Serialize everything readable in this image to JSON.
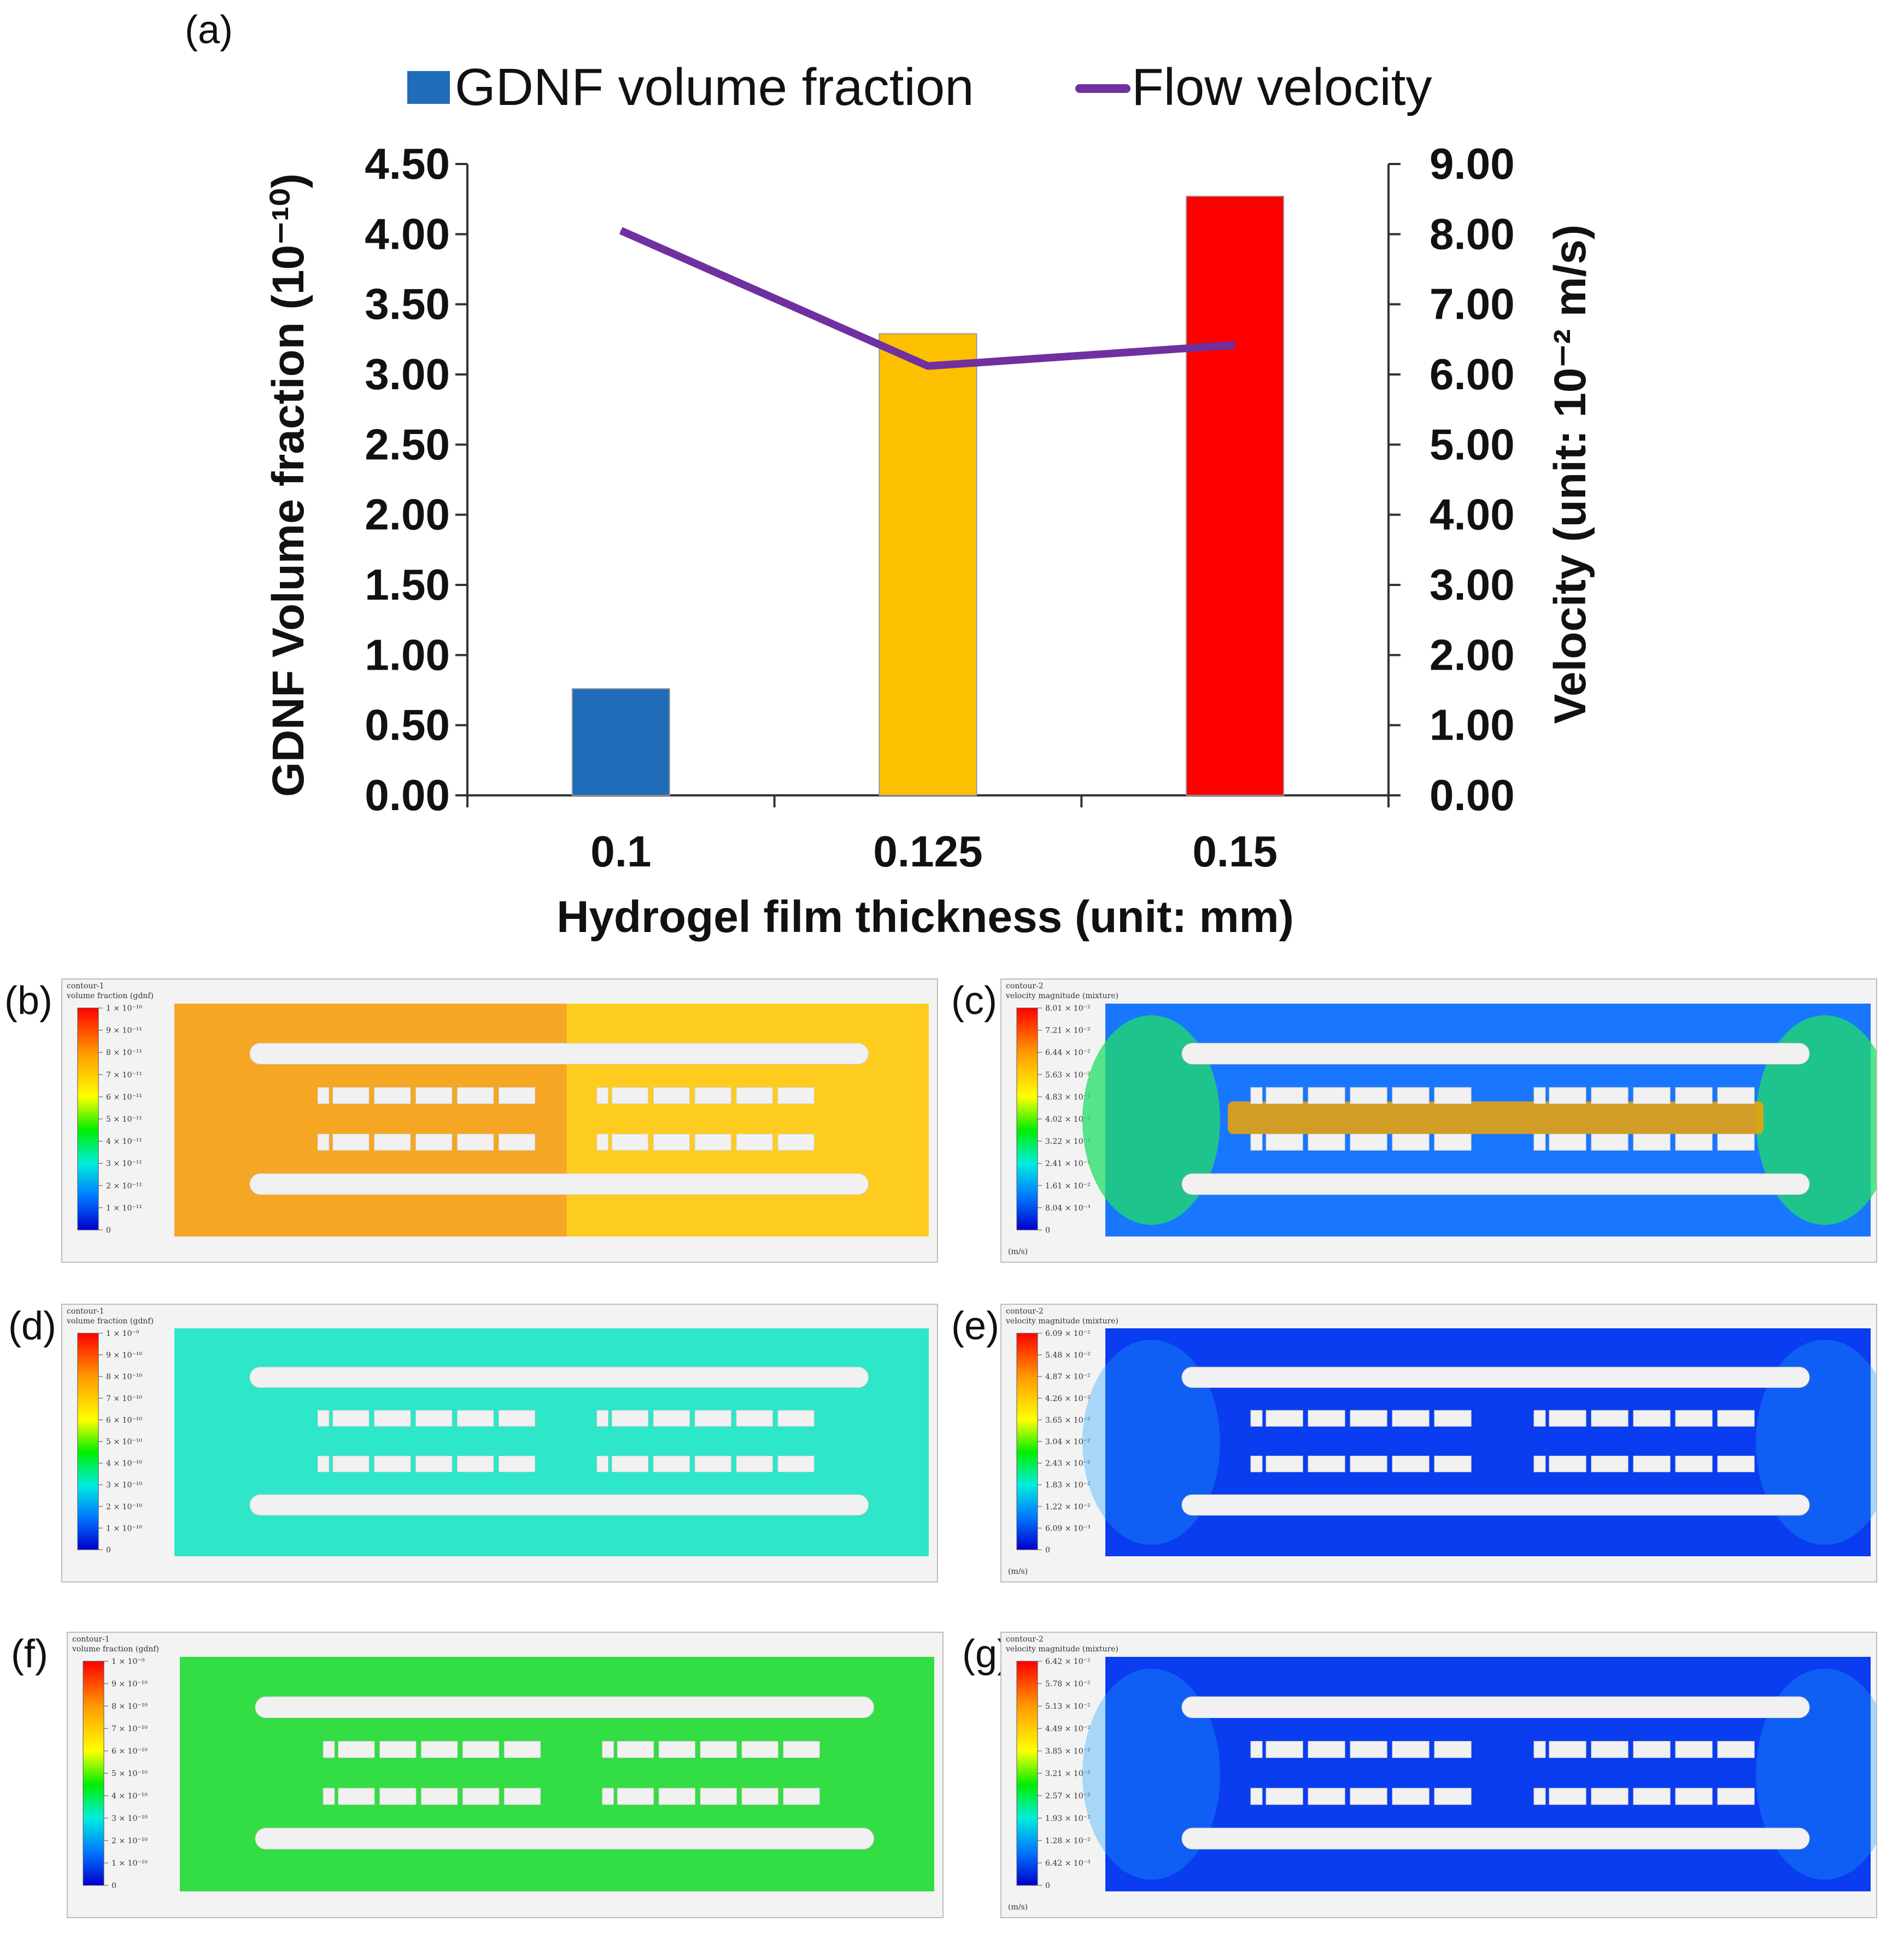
{
  "panel_labels": {
    "a": "(a)",
    "b": "(b)",
    "c": "(c)",
    "d": "(d)",
    "e": "(e)",
    "f": "(f)",
    "g": "(g)"
  },
  "chart_data": {
    "type": "bar+line",
    "categories": [
      "0.1",
      "0.125",
      "0.15"
    ],
    "series": [
      {
        "name": "GDNF volume fraction",
        "kind": "bar",
        "axis": "left",
        "values": [
          0.76,
          3.29,
          4.27
        ],
        "colors": [
          "#1f6cb8",
          "#fdc000",
          "#ff0000"
        ]
      },
      {
        "name": "Flow velocity",
        "kind": "line",
        "axis": "right",
        "values": [
          8.05,
          6.12,
          6.42
        ],
        "color": "#7030a0"
      }
    ],
    "xlabel": "Hydrogel film thickness (unit: mm)",
    "ylabel_left": "GDNF Volume fraction (10⁻¹⁰)",
    "ylabel_right": "Velocity (unit: 10⁻² m/s)",
    "ylim_left": [
      0,
      4.5
    ],
    "ylim_right": [
      0,
      9
    ],
    "left_ticks": [
      "0.00",
      "0.50",
      "1.00",
      "1.50",
      "2.00",
      "2.50",
      "3.00",
      "3.50",
      "4.00",
      "4.50"
    ],
    "right_ticks": [
      "0.00",
      "1.00",
      "2.00",
      "3.00",
      "4.00",
      "5.00",
      "6.00",
      "7.00",
      "8.00",
      "9.00"
    ],
    "legend": [
      "GDNF volume fraction",
      "Flow velocity"
    ],
    "legend_position": "top"
  },
  "contours": {
    "b": {
      "title": "contour-1",
      "subtitle": "volume fraction (gdnf)",
      "ticks": [
        "1 × 10⁻¹⁰",
        "9 × 10⁻¹¹",
        "8 × 10⁻¹¹",
        "7 × 10⁻¹¹",
        "6 × 10⁻¹¹",
        "5 × 10⁻¹¹",
        "4 × 10⁻¹¹",
        "3 × 10⁻¹¹",
        "2 × 10⁻¹¹",
        "1 × 10⁻¹¹",
        "0"
      ],
      "unit": "",
      "field_color": "#f5a623"
    },
    "c": {
      "title": "contour-2",
      "subtitle": "velocity magnitude (mixture)",
      "ticks": [
        "8.01 × 10⁻²",
        "7.21 × 10⁻²",
        "6.44 × 10⁻²",
        "5.63 × 10⁻²",
        "4.83 × 10⁻²",
        "4.02 × 10⁻²",
        "3.22 × 10⁻²",
        "2.41 × 10⁻²",
        "1.61 × 10⁻²",
        "8.04 × 10⁻³",
        "0"
      ],
      "unit": "(m/s)",
      "field_color": "#1976ff"
    },
    "d": {
      "title": "contour-1",
      "subtitle": "volume fraction (gdnf)",
      "ticks": [
        "1 × 10⁻⁹",
        "9 × 10⁻¹⁰",
        "8 × 10⁻¹⁰",
        "7 × 10⁻¹⁰",
        "6 × 10⁻¹⁰",
        "5 × 10⁻¹⁰",
        "4 × 10⁻¹⁰",
        "3 × 10⁻¹⁰",
        "2 × 10⁻¹⁰",
        "1 × 10⁻¹⁰",
        "0"
      ],
      "unit": "",
      "field_color": "#2ee6c8"
    },
    "e": {
      "title": "contour-2",
      "subtitle": "velocity magnitude (mixture)",
      "ticks": [
        "6.09 × 10⁻²",
        "5.48 × 10⁻²",
        "4.87 × 10⁻²",
        "4.26 × 10⁻²",
        "3.65 × 10⁻²",
        "3.04 × 10⁻²",
        "2.43 × 10⁻²",
        "1.83 × 10⁻²",
        "1.22 × 10⁻²",
        "6.09 × 10⁻³",
        "0"
      ],
      "unit": "(m/s)",
      "field_color": "#0a3cf0"
    },
    "f": {
      "title": "contour-1",
      "subtitle": "volume fraction (gdnf)",
      "ticks": [
        "1 × 10⁻⁹",
        "9 × 10⁻¹⁰",
        "8 × 10⁻¹⁰",
        "7 × 10⁻¹⁰",
        "6 × 10⁻¹⁰",
        "5 × 10⁻¹⁰",
        "4 × 10⁻¹⁰",
        "3 × 10⁻¹⁰",
        "2 × 10⁻¹⁰",
        "1 × 10⁻¹⁰",
        "0"
      ],
      "unit": "",
      "field_color": "#33dd44"
    },
    "g": {
      "title": "contour-2",
      "subtitle": "velocity magnitude (mixture)",
      "ticks": [
        "6.42 × 10⁻²",
        "5.78 × 10⁻²",
        "5.13 × 10⁻²",
        "4.49 × 10⁻²",
        "3.85 × 10⁻²",
        "3.21 × 10⁻²",
        "2.57 × 10⁻²",
        "1.93 × 10⁻²",
        "1.28 × 10⁻²",
        "6.42 × 10⁻³",
        "0"
      ],
      "unit": "(m/s)",
      "field_color": "#0a3cf0"
    }
  }
}
